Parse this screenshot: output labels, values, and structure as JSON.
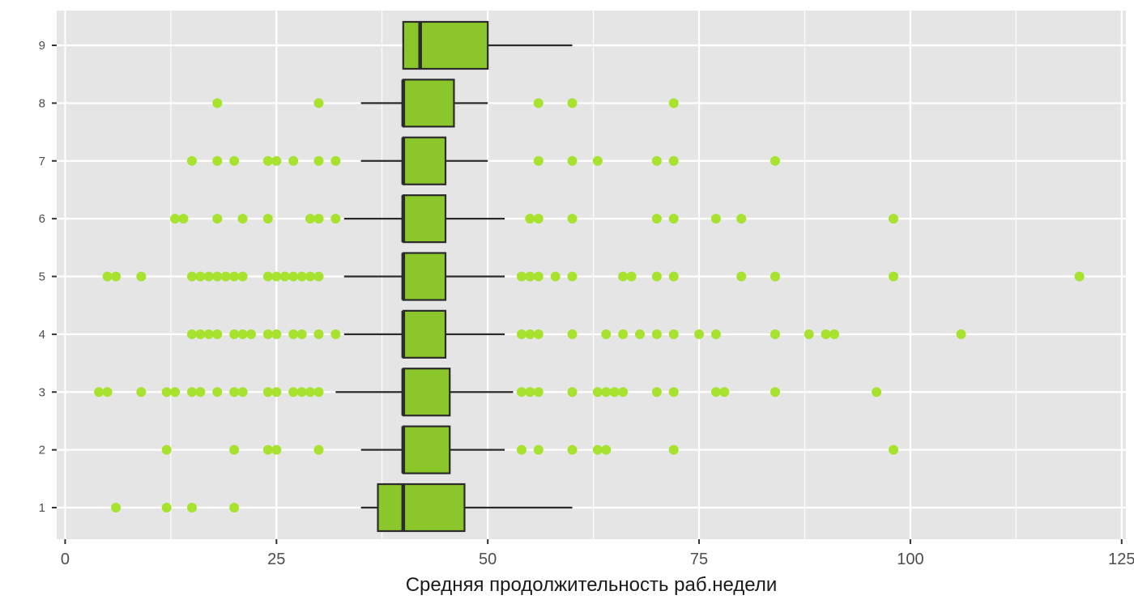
{
  "colors": {
    "panel_bg": "#E5E5E5",
    "grid_major": "#FFFFFF",
    "box_fill": "#8BC62A",
    "box_outline": "#2B2B2B",
    "outlier": "#A6E22E",
    "axis_text": "#4D4D4D",
    "title_text": "#1A1A1A"
  },
  "chart_data": {
    "type": "boxplot",
    "orientation": "horizontal",
    "title": "",
    "xlabel": "Средняя продолжительность раб.недели",
    "ylabel": "",
    "xlim": [
      -1,
      125.5
    ],
    "x_ticks": [
      0,
      25,
      50,
      75,
      100,
      125
    ],
    "x_tick_labels": [
      "0",
      "25",
      "50",
      "75",
      "100",
      "125"
    ],
    "categories": [
      "1",
      "2",
      "3",
      "4",
      "5",
      "6",
      "7",
      "8",
      "9"
    ],
    "grid": true,
    "legend": "none",
    "boxes": [
      {
        "category": "1",
        "whisker_low": 35,
        "q1": 37,
        "median": 40,
        "q3": 47.25,
        "whisker_high": 60,
        "outliers": [
          6,
          12,
          15,
          20
        ]
      },
      {
        "category": "2",
        "whisker_low": 35,
        "q1": 40,
        "median": 40,
        "q3": 45.5,
        "whisker_high": 52,
        "outliers": [
          12,
          20,
          24,
          25,
          30,
          54,
          56,
          60,
          63,
          64,
          72,
          98
        ]
      },
      {
        "category": "3",
        "whisker_low": 32,
        "q1": 40,
        "median": 40,
        "q3": 45.5,
        "whisker_high": 53,
        "outliers": [
          4,
          5,
          9,
          12,
          13,
          15,
          16,
          18,
          20,
          21,
          24,
          25,
          27,
          28,
          29,
          30,
          54,
          55,
          56,
          60,
          63,
          64,
          65,
          66,
          70,
          72,
          77,
          78,
          84,
          96
        ]
      },
      {
        "category": "4",
        "whisker_low": 33,
        "q1": 40,
        "median": 40,
        "q3": 45,
        "whisker_high": 52,
        "outliers": [
          15,
          16,
          17,
          18,
          20,
          21,
          22,
          24,
          25,
          27,
          28,
          30,
          32,
          54,
          55,
          56,
          60,
          64,
          66,
          68,
          70,
          72,
          75,
          77,
          84,
          88,
          90,
          91,
          106
        ]
      },
      {
        "category": "5",
        "whisker_low": 33,
        "q1": 40,
        "median": 40,
        "q3": 45,
        "whisker_high": 52,
        "outliers": [
          5,
          6,
          9,
          15,
          16,
          17,
          18,
          19,
          20,
          21,
          24,
          25,
          26,
          27,
          28,
          29,
          30,
          54,
          55,
          56,
          58,
          60,
          66,
          67,
          70,
          72,
          80,
          84,
          98,
          120
        ]
      },
      {
        "category": "6",
        "whisker_low": 33,
        "q1": 40,
        "median": 40,
        "q3": 45,
        "whisker_high": 52,
        "outliers": [
          13,
          14,
          18,
          21,
          24,
          29,
          30,
          32,
          55,
          56,
          60,
          70,
          72,
          77,
          80,
          98
        ]
      },
      {
        "category": "7",
        "whisker_low": 35,
        "q1": 40,
        "median": 40,
        "q3": 45,
        "whisker_high": 50,
        "outliers": [
          15,
          18,
          20,
          24,
          25,
          27,
          30,
          32,
          56,
          60,
          63,
          70,
          72,
          84
        ]
      },
      {
        "category": "8",
        "whisker_low": 35,
        "q1": 40,
        "median": 40,
        "q3": 46,
        "whisker_high": 50,
        "outliers": [
          18,
          30,
          56,
          60,
          72
        ]
      },
      {
        "category": "9",
        "whisker_low": 40,
        "q1": 40,
        "median": 42,
        "q3": 50,
        "whisker_high": 60,
        "outliers": []
      }
    ]
  }
}
